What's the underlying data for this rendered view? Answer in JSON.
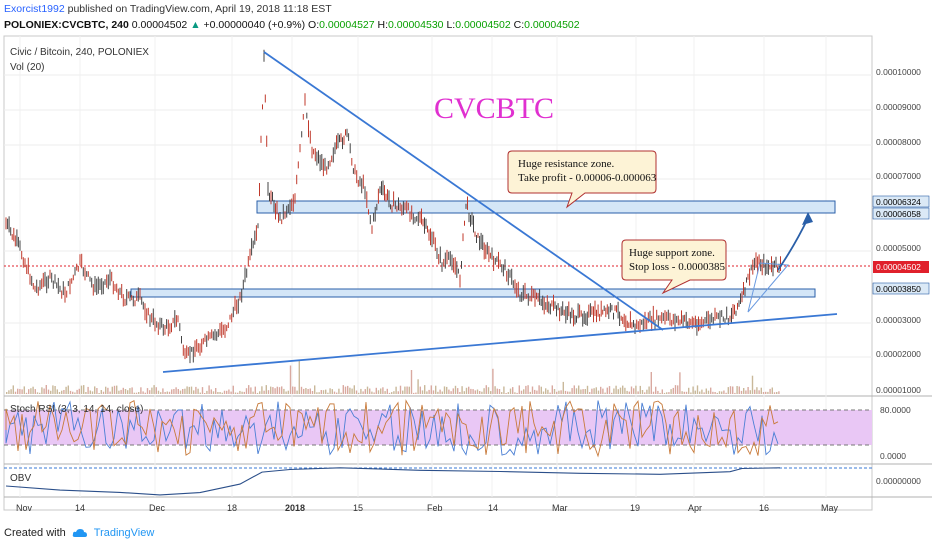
{
  "header": {
    "author": "Exorcist1992",
    "published_text": "published on TradingView.com, April 19, 2018 11:18 EST",
    "symbol": "POLONIEX:CVCBTC, 240",
    "last": "0.00004502",
    "change": "+0.00000040 (+0.9%)",
    "open_label": "O:",
    "open": "0.00004527",
    "high_label": "H:",
    "high": "0.00004530",
    "low_label": "L:",
    "low": "0.00004502",
    "close_label": "C:",
    "close": "0.00004502"
  },
  "chart": {
    "title_line": "Civic / Bitcoin, 240, POLONIEX",
    "vol_label": "Vol (20)",
    "watermark": "CVCBTC",
    "resistance_note": [
      "Huge resistance zone.",
      "Take profit - 0.00006-0.000063"
    ],
    "support_note": [
      "Huge support zone.",
      "Stop loss - 0.0000385"
    ],
    "stoch_label": "Stoch RSI (3, 3, 14, 14, close)",
    "obv_label": "OBV",
    "price_ticks": [
      "0.00010000",
      "0.00009000",
      "0.00008000",
      "0.00007000",
      "0.00005000",
      "0.00003000",
      "0.00002000",
      "0.00001000"
    ],
    "tag_prices": [
      {
        "label": "0.00006324",
        "color": "#000000",
        "bg": "#dbe9f6"
      },
      {
        "label": "0.00006058",
        "color": "#000000",
        "bg": "#dbe9f6"
      },
      {
        "label": "0.00004502",
        "color": "#ffffff",
        "bg": "#e0202b"
      },
      {
        "label": "0.00003850",
        "color": "#000000",
        "bg": "#dbe9f6"
      }
    ],
    "stoch_ticks": [
      "80.0000",
      "0.0000"
    ],
    "obv_tick": "0.00000000",
    "x_labels": [
      "Nov",
      "14",
      "Dec",
      "18",
      "2018",
      "15",
      "Feb",
      "14",
      "Mar",
      "19",
      "Apr",
      "16",
      "May"
    ],
    "colors": {
      "watermark": "#e030d0",
      "trend": "#3a78d4",
      "stoch_fill": "#e9c7f5",
      "price_up": "#444444",
      "price_down": "#c0392b"
    }
  },
  "footer": {
    "created_with": "Created with",
    "brand": "TradingView"
  }
}
